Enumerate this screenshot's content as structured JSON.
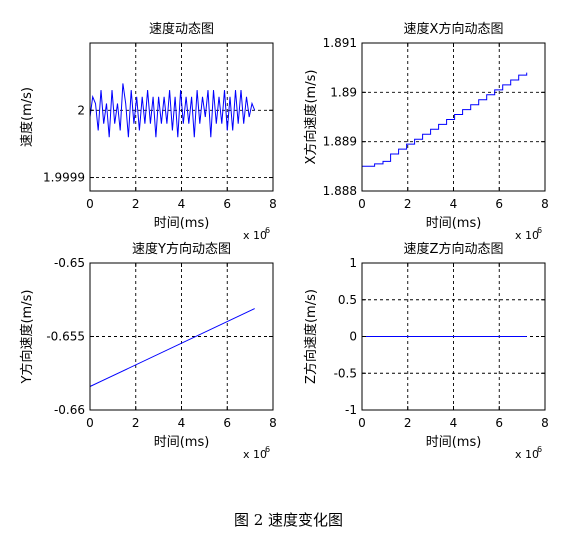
{
  "caption": "图 2  速度变化图",
  "chart_data": [
    {
      "type": "line",
      "title": "速度动态图",
      "xlabel": "时间(ms)",
      "ylabel": "速度(m/s)",
      "x_multiplier_label": "x 10",
      "x_multiplier_exp": "6",
      "xlim": [
        0,
        8
      ],
      "ylim": [
        1.99988,
        2.0001
      ],
      "xticks": [
        0,
        2,
        4,
        6,
        8
      ],
      "xtick_labels": [
        "0",
        "2",
        "4",
        "6",
        "8"
      ],
      "yticks": [
        1.9999,
        2.0
      ],
      "ytick_labels": [
        "1.9999",
        "2"
      ],
      "grid": true,
      "series": [
        {
          "color": "#0000ff",
          "x": [
            0.0,
            0.12,
            0.24,
            0.36,
            0.48,
            0.6,
            0.72,
            0.84,
            0.96,
            1.08,
            1.2,
            1.32,
            1.44,
            1.56,
            1.68,
            1.8,
            1.92,
            2.04,
            2.16,
            2.28,
            2.4,
            2.52,
            2.64,
            2.76,
            2.88,
            3.0,
            3.12,
            3.24,
            3.36,
            3.48,
            3.6,
            3.72,
            3.84,
            3.96,
            4.08,
            4.2,
            4.32,
            4.44,
            4.56,
            4.68,
            4.8,
            4.92,
            5.04,
            5.16,
            5.28,
            5.4,
            5.52,
            5.64,
            5.76,
            5.88,
            6.0,
            6.12,
            6.24,
            6.36,
            6.48,
            6.6,
            6.72,
            6.84,
            6.96,
            7.08,
            7.2
          ],
          "y": [
            1.99999,
            2.00002,
            2.00001,
            1.99997,
            2.00003,
            1.99998,
            2.00001,
            1.99996,
            2.00003,
            1.99998,
            2.00001,
            1.99997,
            2.00004,
            2.00001,
            1.99996,
            2.00003,
            1.99998,
            2.00002,
            1.99997,
            2.00002,
            1.99998,
            2.00003,
            1.99998,
            2.00002,
            1.99996,
            2.00002,
            1.99998,
            2.00002,
            1.99998,
            2.00003,
            1.99997,
            2.00002,
            1.99996,
            2.00003,
            1.99998,
            2.00002,
            1.99998,
            2.00002,
            1.99996,
            2.00003,
            1.99998,
            2.00002,
            1.99999,
            2.00003,
            1.99996,
            2.00003,
            1.99998,
            2.00002,
            1.99998,
            2.00003,
            1.99997,
            2.00002,
            1.99997,
            2.00003,
            1.99998,
            2.00003,
            1.99998,
            2.00002,
            1.99999,
            2.00001,
            2.0
          ]
        }
      ]
    },
    {
      "type": "line",
      "title": "速度X方向动态图",
      "xlabel": "时间(ms)",
      "ylabel": "X方向速度(m/s)",
      "x_multiplier_label": "x 10",
      "x_multiplier_exp": "6",
      "xlim": [
        0,
        8
      ],
      "ylim": [
        1.888,
        1.891
      ],
      "xticks": [
        0,
        2,
        4,
        6,
        8
      ],
      "xtick_labels": [
        "0",
        "2",
        "4",
        "6",
        "8"
      ],
      "yticks": [
        1.888,
        1.889,
        1.89,
        1.891
      ],
      "ytick_labels": [
        "1.888",
        "1.889",
        "1.89",
        "1.891"
      ],
      "grid": true,
      "series": [
        {
          "color": "#0000ff",
          "step": true,
          "x": [
            0.0,
            0.55,
            0.92,
            1.25,
            1.6,
            1.95,
            2.3,
            2.65,
            3.0,
            3.35,
            3.7,
            4.05,
            4.4,
            4.75,
            5.1,
            5.45,
            5.8,
            6.15,
            6.5,
            6.85,
            7.2
          ],
          "y": [
            1.8885,
            1.88855,
            1.8886,
            1.88875,
            1.88885,
            1.88895,
            1.88905,
            1.88915,
            1.88925,
            1.88935,
            1.88945,
            1.88955,
            1.88965,
            1.88975,
            1.88985,
            1.88995,
            1.89005,
            1.89015,
            1.89025,
            1.89035,
            1.8904
          ]
        }
      ]
    },
    {
      "type": "line",
      "title": "速度Y方向动态图",
      "xlabel": "时间(ms)",
      "ylabel": "Y方向速度(m/s)",
      "x_multiplier_label": "x 10",
      "x_multiplier_exp": "6",
      "xlim": [
        0,
        8
      ],
      "ylim": [
        -0.66,
        -0.65
      ],
      "xticks": [
        0,
        2,
        4,
        6,
        8
      ],
      "xtick_labels": [
        "0",
        "2",
        "4",
        "6",
        "8"
      ],
      "yticks": [
        -0.66,
        -0.655,
        -0.65
      ],
      "ytick_labels": [
        "-0.66",
        "-0.655",
        "-0.65"
      ],
      "grid": true,
      "series": [
        {
          "color": "#0000ff",
          "x": [
            0.0,
            7.2
          ],
          "y": [
            -0.6584,
            -0.6531
          ]
        }
      ]
    },
    {
      "type": "line",
      "title": "速度Z方向动态图",
      "xlabel": "时间(ms)",
      "ylabel": "Z方向速度(m/s)",
      "x_multiplier_label": "x 10",
      "x_multiplier_exp": "6",
      "xlim": [
        0,
        8
      ],
      "ylim": [
        -1,
        1
      ],
      "xticks": [
        0,
        2,
        4,
        6,
        8
      ],
      "xtick_labels": [
        "0",
        "2",
        "4",
        "6",
        "8"
      ],
      "yticks": [
        -1,
        -0.5,
        0,
        0.5,
        1
      ],
      "ytick_labels": [
        "-1",
        "-0.5",
        "0",
        "0.5",
        "1"
      ],
      "grid": true,
      "series": [
        {
          "color": "#0000ff",
          "x": [
            0.0,
            7.2
          ],
          "y": [
            0,
            0
          ]
        }
      ]
    }
  ]
}
